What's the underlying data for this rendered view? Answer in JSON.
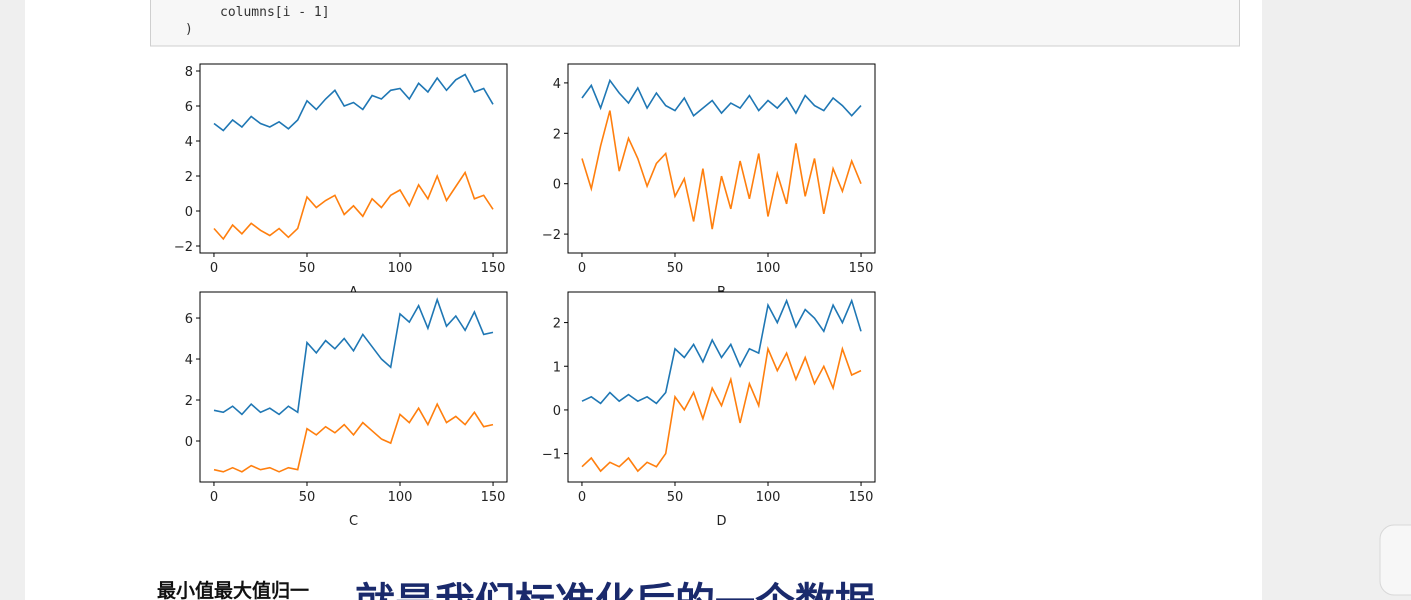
{
  "code": {
    "lines": [
      "columns[i - 1]",
      ")"
    ]
  },
  "chart_data": [
    {
      "type": "line",
      "xlabel": "A",
      "xlim": [
        -7.5,
        157.5
      ],
      "ylim": [
        -2.4,
        8.4
      ],
      "xticks": [
        0,
        50,
        100,
        150
      ],
      "yticks": [
        {
          "value": -2,
          "label": "−2"
        },
        0,
        2,
        4,
        6,
        8
      ],
      "x": [
        0,
        5,
        10,
        15,
        20,
        25,
        30,
        35,
        40,
        45,
        50,
        55,
        60,
        65,
        70,
        75,
        80,
        85,
        90,
        95,
        100,
        105,
        110,
        115,
        120,
        125,
        130,
        135,
        140,
        145,
        150
      ],
      "series": [
        {
          "color": "#1f77b4",
          "values": [
            5.0,
            4.6,
            5.2,
            4.8,
            5.4,
            5.0,
            4.8,
            5.1,
            4.7,
            5.2,
            6.3,
            5.8,
            6.4,
            6.9,
            6.0,
            6.2,
            5.8,
            6.6,
            6.4,
            6.9,
            7.0,
            6.4,
            7.3,
            6.8,
            7.6,
            6.9,
            7.5,
            7.8,
            6.8,
            7.0,
            6.1
          ]
        },
        {
          "color": "#ff7f0e",
          "values": [
            -1.0,
            -1.6,
            -0.8,
            -1.3,
            -0.7,
            -1.1,
            -1.4,
            -1.0,
            -1.5,
            -1.0,
            0.8,
            0.2,
            0.6,
            0.9,
            -0.2,
            0.3,
            -0.3,
            0.7,
            0.2,
            0.9,
            1.2,
            0.3,
            1.5,
            0.7,
            2.0,
            0.6,
            1.4,
            2.2,
            0.7,
            0.9,
            0.1
          ]
        }
      ]
    },
    {
      "type": "line",
      "xlabel": "B",
      "xlim": [
        -7.5,
        157.5
      ],
      "ylim": [
        -2.75,
        4.75
      ],
      "xticks": [
        0,
        50,
        100,
        150
      ],
      "yticks": [
        {
          "value": -2,
          "label": "−2"
        },
        0,
        2,
        4
      ],
      "x": [
        0,
        5,
        10,
        15,
        20,
        25,
        30,
        35,
        40,
        45,
        50,
        55,
        60,
        65,
        70,
        75,
        80,
        85,
        90,
        95,
        100,
        105,
        110,
        115,
        120,
        125,
        130,
        135,
        140,
        145,
        150
      ],
      "series": [
        {
          "color": "#1f77b4",
          "values": [
            3.4,
            3.9,
            3.0,
            4.1,
            3.6,
            3.2,
            3.8,
            3.0,
            3.6,
            3.1,
            2.9,
            3.4,
            2.7,
            3.0,
            3.3,
            2.8,
            3.2,
            3.0,
            3.5,
            2.9,
            3.3,
            3.0,
            3.4,
            2.8,
            3.5,
            3.1,
            2.9,
            3.4,
            3.1,
            2.7,
            3.1
          ]
        },
        {
          "color": "#ff7f0e",
          "values": [
            1.0,
            -0.2,
            1.5,
            2.9,
            0.5,
            1.8,
            1.0,
            -0.1,
            0.8,
            1.2,
            -0.5,
            0.2,
            -1.5,
            0.6,
            -1.8,
            0.3,
            -1.0,
            0.9,
            -0.6,
            1.2,
            -1.3,
            0.4,
            -0.8,
            1.6,
            -0.5,
            1.0,
            -1.2,
            0.6,
            -0.3,
            0.9,
            0.0
          ]
        }
      ]
    },
    {
      "type": "line",
      "xlabel": "C",
      "xlim": [
        -7.5,
        157.5
      ],
      "ylim": [
        -2.0,
        7.27
      ],
      "xticks": [
        0,
        50,
        100,
        150
      ],
      "yticks": [
        0,
        2,
        4,
        6
      ],
      "x": [
        0,
        5,
        10,
        15,
        20,
        25,
        30,
        35,
        40,
        45,
        50,
        55,
        60,
        65,
        70,
        75,
        80,
        85,
        90,
        95,
        100,
        105,
        110,
        115,
        120,
        125,
        130,
        135,
        140,
        145,
        150
      ],
      "series": [
        {
          "color": "#1f77b4",
          "values": [
            1.5,
            1.4,
            1.7,
            1.3,
            1.8,
            1.4,
            1.6,
            1.3,
            1.7,
            1.4,
            4.8,
            4.3,
            4.9,
            4.5,
            5.0,
            4.4,
            5.2,
            4.6,
            4.0,
            3.6,
            6.2,
            5.8,
            6.6,
            5.5,
            6.9,
            5.6,
            6.1,
            5.4,
            6.3,
            5.2,
            5.3
          ]
        },
        {
          "color": "#ff7f0e",
          "values": [
            -1.4,
            -1.5,
            -1.3,
            -1.5,
            -1.2,
            -1.4,
            -1.3,
            -1.5,
            -1.3,
            -1.4,
            0.6,
            0.3,
            0.7,
            0.4,
            0.8,
            0.3,
            0.9,
            0.5,
            0.1,
            -0.1,
            1.3,
            0.9,
            1.6,
            0.8,
            1.8,
            0.9,
            1.2,
            0.8,
            1.4,
            0.7,
            0.8
          ]
        }
      ]
    },
    {
      "type": "line",
      "xlabel": "D",
      "xlim": [
        -7.5,
        157.5
      ],
      "ylim": [
        -1.65,
        2.7
      ],
      "xticks": [
        0,
        50,
        100,
        150
      ],
      "yticks": [
        {
          "value": -1,
          "label": "−1"
        },
        0,
        1,
        2
      ],
      "x": [
        0,
        5,
        10,
        15,
        20,
        25,
        30,
        35,
        40,
        45,
        50,
        55,
        60,
        65,
        70,
        75,
        80,
        85,
        90,
        95,
        100,
        105,
        110,
        115,
        120,
        125,
        130,
        135,
        140,
        145,
        150
      ],
      "series": [
        {
          "color": "#1f77b4",
          "values": [
            0.2,
            0.3,
            0.15,
            0.4,
            0.2,
            0.35,
            0.2,
            0.3,
            0.15,
            0.4,
            1.4,
            1.2,
            1.5,
            1.1,
            1.6,
            1.2,
            1.5,
            1.0,
            1.4,
            1.3,
            2.4,
            2.0,
            2.5,
            1.9,
            2.3,
            2.1,
            1.8,
            2.4,
            2.0,
            2.5,
            1.8
          ]
        },
        {
          "color": "#ff7f0e",
          "values": [
            -1.3,
            -1.1,
            -1.4,
            -1.2,
            -1.3,
            -1.1,
            -1.4,
            -1.2,
            -1.3,
            -1.0,
            0.3,
            0.0,
            0.4,
            -0.2,
            0.5,
            0.1,
            0.7,
            -0.3,
            0.6,
            0.1,
            1.4,
            0.9,
            1.3,
            0.7,
            1.2,
            0.6,
            1.0,
            0.5,
            1.4,
            0.8,
            0.9
          ]
        }
      ]
    }
  ],
  "markdown": {
    "heading": "最小值最大值归一"
  },
  "caption": "就是我们标准化后的一个数据"
}
